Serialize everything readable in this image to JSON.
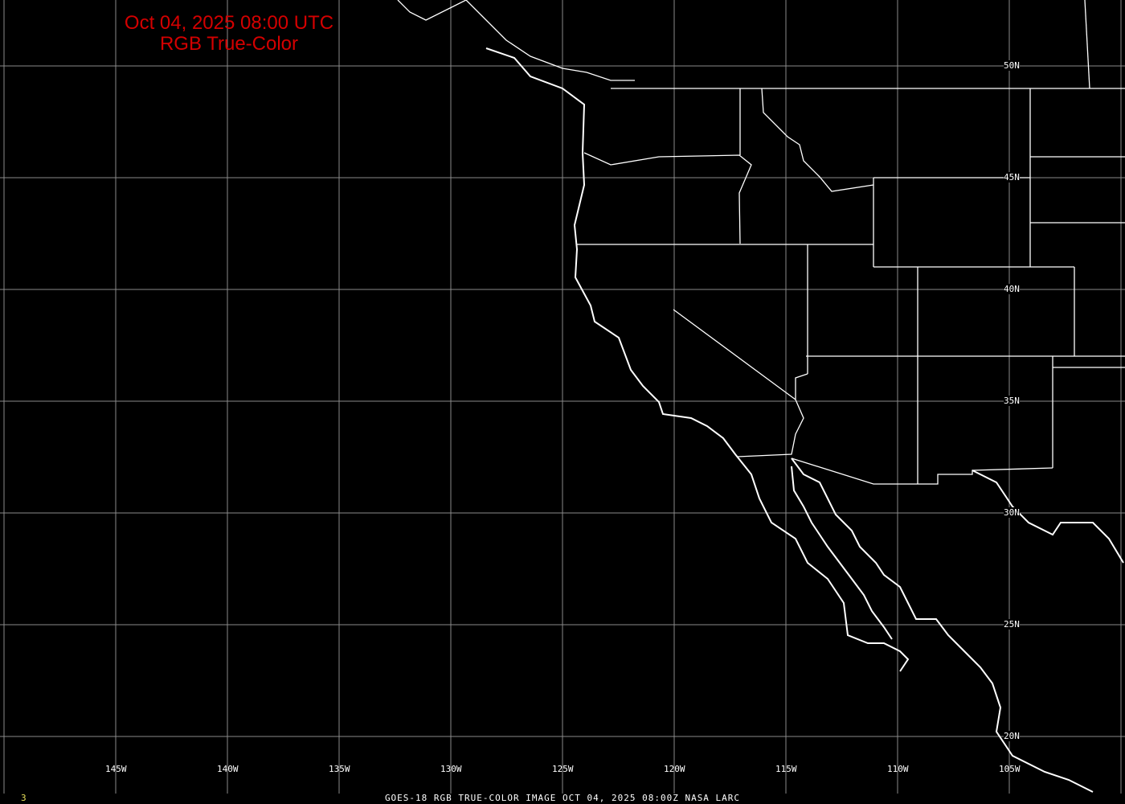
{
  "title": {
    "line1": "Oct 04, 2025 08:00 UTC",
    "line2": "RGB True-Color"
  },
  "footer": "GOES-18 RGB TRUE-COLOR IMAGE   OCT 04, 2025 08:00Z    NASA LARC",
  "frame_number": "3",
  "lat_labels": [
    "50N",
    "45N",
    "40N",
    "35N",
    "30N",
    "25N",
    "20N"
  ],
  "lon_labels": [
    "145W",
    "140W",
    "135W",
    "130W",
    "125W",
    "120W",
    "115W",
    "110W",
    "105W"
  ],
  "colors": {
    "background": "#000000",
    "title": "#d40000",
    "grid": "#8a8a8a",
    "coastline": "#ffffff",
    "frame_number": "#e8e05a"
  }
}
